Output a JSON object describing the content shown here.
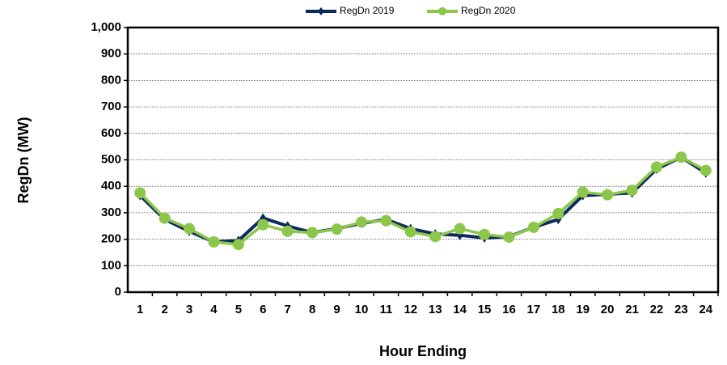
{
  "chart_data": {
    "type": "line",
    "y_label": "RegDn (MW)",
    "x_label": "Hour Ending",
    "categories": [
      "1",
      "2",
      "3",
      "4",
      "5",
      "6",
      "7",
      "8",
      "9",
      "10",
      "11",
      "12",
      "13",
      "14",
      "15",
      "16",
      "17",
      "18",
      "19",
      "20",
      "21",
      "22",
      "23",
      "24"
    ],
    "series": [
      {
        "name": "RegDn 2019",
        "color": "#0d2a5c",
        "values": [
          365,
          275,
          230,
          190,
          195,
          280,
          250,
          225,
          240,
          260,
          275,
          240,
          220,
          215,
          205,
          210,
          245,
          275,
          365,
          370,
          375,
          465,
          510,
          450
        ]
      },
      {
        "name": "RegDn 2020",
        "color": "#8cc64b",
        "values": [
          375,
          280,
          240,
          190,
          180,
          255,
          230,
          225,
          238,
          265,
          270,
          228,
          210,
          240,
          218,
          208,
          245,
          297,
          378,
          368,
          385,
          473,
          510,
          460
        ]
      }
    ],
    "ylim": [
      0,
      1000
    ],
    "yticks": [
      0,
      100,
      200,
      300,
      400,
      500,
      600,
      700,
      800,
      900,
      {
        "value": 1000,
        "label": "1,000"
      }
    ],
    "grid": true,
    "legend": "top"
  }
}
